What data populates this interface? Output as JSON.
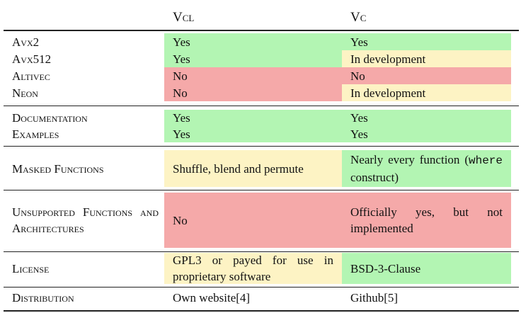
{
  "table": {
    "columns": [
      "Vcl",
      "Vc"
    ],
    "rows": [
      {
        "label": "Avx2",
        "cells": [
          {
            "text": "Yes",
            "color": "#b3f5b3"
          },
          {
            "text": "Yes",
            "color": "#b3f5b3"
          }
        ]
      },
      {
        "label": "Avx512",
        "cells": [
          {
            "text": "Yes",
            "color": "#b3f5b3"
          },
          {
            "text": "In development",
            "color": "#fdf3c4"
          }
        ]
      },
      {
        "label": "Altivec",
        "cells": [
          {
            "text": "No",
            "color": "#f5a9a9"
          },
          {
            "text": "No",
            "color": "#f5a9a9"
          }
        ]
      },
      {
        "label": "Neon",
        "cells": [
          {
            "text": "No",
            "color": "#f5a9a9"
          },
          {
            "text": "In development",
            "color": "#fdf3c4"
          }
        ]
      },
      {
        "label": "Documentation",
        "cells": [
          {
            "text": "Yes",
            "color": "#b3f5b3"
          },
          {
            "text": "Yes",
            "color": "#b3f5b3"
          }
        ]
      },
      {
        "label": "Examples",
        "cells": [
          {
            "text": "Yes",
            "color": "#b3f5b3"
          },
          {
            "text": "Yes",
            "color": "#b3f5b3"
          }
        ]
      },
      {
        "label": "Masked Functions",
        "cells": [
          {
            "text": "Shuffle, blend and permute",
            "color": "#fdf3c4"
          },
          {
            "parts": [
              {
                "text": "Nearly every function ("
              },
              {
                "text": "where",
                "code": true
              },
              {
                "text": " construct)"
              }
            ],
            "color": "#b3f5b3"
          }
        ]
      },
      {
        "label": "Unsupported Functions and Architectures",
        "cells": [
          {
            "text": "No",
            "color": "#f5a9a9"
          },
          {
            "text": "Officially yes, but not implemented",
            "color": "#f5a9a9"
          }
        ]
      },
      {
        "label": "License",
        "cells": [
          {
            "text": "GPL3 or payed for use in proprietary software",
            "color": "#fdf3c4"
          },
          {
            "text": "BSD-3-Clause",
            "color": "#b3f5b3"
          }
        ]
      },
      {
        "label": "Distribution",
        "cells": [
          {
            "text": "Own website[4]"
          },
          {
            "text": "Github[5]"
          }
        ]
      }
    ]
  }
}
